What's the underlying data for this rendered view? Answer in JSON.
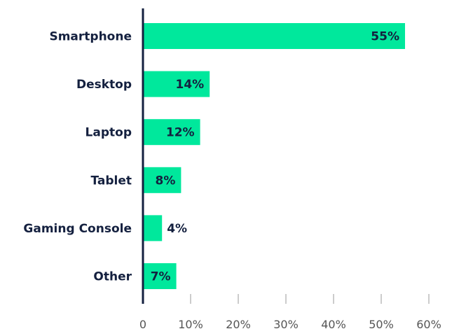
{
  "chart_data": {
    "type": "bar",
    "orientation": "horizontal",
    "categories": [
      "Smartphone",
      "Desktop",
      "Laptop",
      "Tablet",
      "Gaming Console",
      "Other"
    ],
    "values": [
      55,
      14,
      12,
      8,
      4,
      7
    ],
    "value_labels": [
      "55%",
      "14%",
      "12%",
      "8%",
      "4%",
      "7%"
    ],
    "xlim": [
      0,
      60
    ],
    "xticks": [
      0,
      10,
      20,
      30,
      40,
      50,
      60
    ],
    "xtick_labels": [
      "0",
      "10%",
      "20%",
      "30%",
      "40%",
      "50%",
      "60%"
    ],
    "grid": false,
    "colors": {
      "bar": "#00e89c",
      "axis": "#14203f",
      "tick": "#cccccc",
      "text": "#14203f"
    }
  }
}
